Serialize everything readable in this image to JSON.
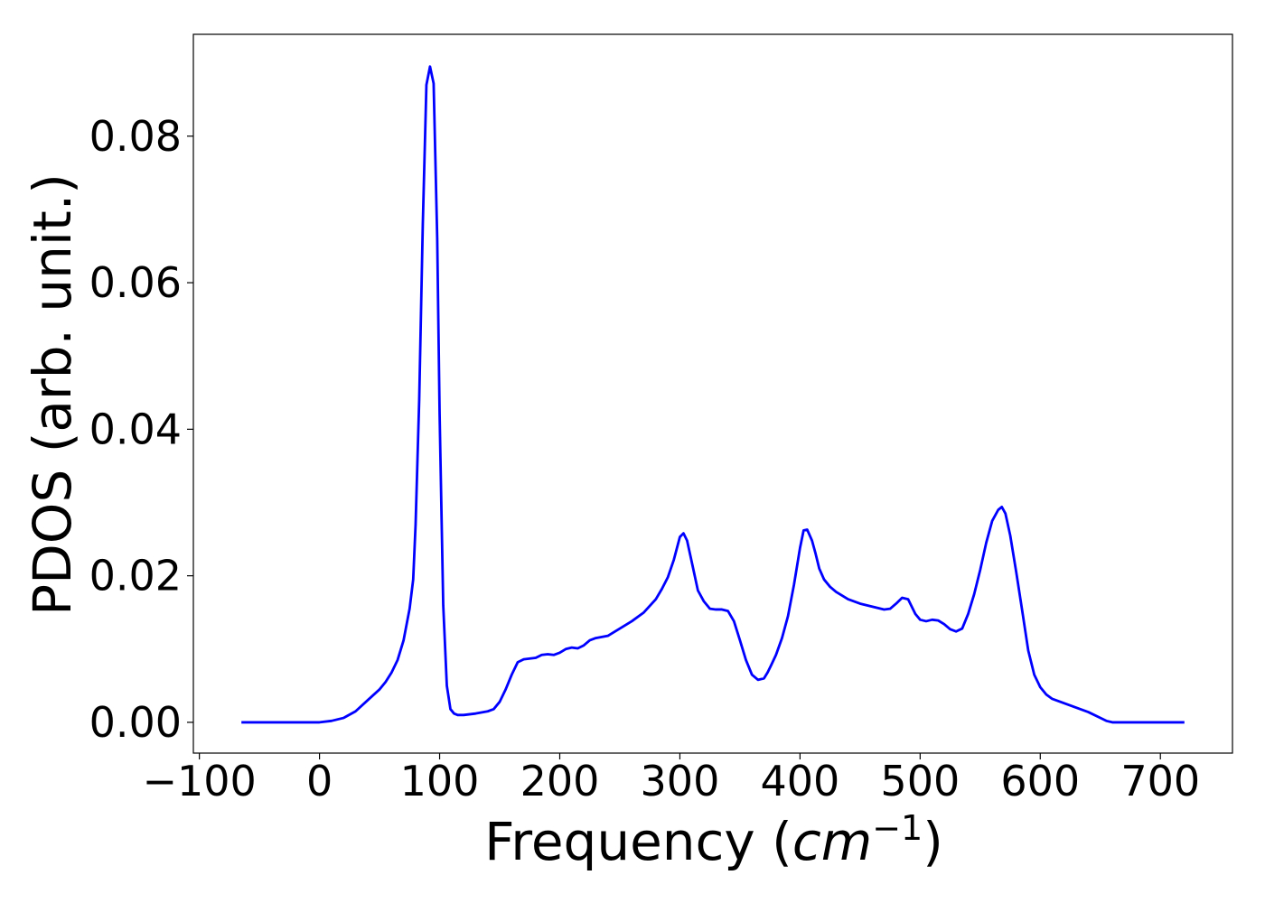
{
  "chart_data": {
    "type": "line",
    "title": "",
    "xlabel": "Frequency (",
    "xlabel_unit": "cm",
    "xlabel_exp": "−1",
    "xlabel_close": ")",
    "ylabel": "PDOS (arb. unit.)",
    "xlim": [
      -105,
      760
    ],
    "ylim": [
      -0.0042,
      0.0939
    ],
    "xticks": [
      -100,
      0,
      100,
      200,
      300,
      400,
      500,
      600,
      700
    ],
    "xtick_labels": [
      "−100",
      "0",
      "100",
      "200",
      "300",
      "400",
      "500",
      "600",
      "700"
    ],
    "yticks": [
      0.0,
      0.02,
      0.04,
      0.06,
      0.08
    ],
    "ytick_labels": [
      "0.00",
      "0.02",
      "0.04",
      "0.06",
      "0.08"
    ],
    "grid": false,
    "legend": "none",
    "series": [
      {
        "color": "#0000ff",
        "x": [
          -65,
          -40,
          -20,
          0,
          10,
          20,
          30,
          40,
          50,
          55,
          60,
          65,
          70,
          75,
          78,
          80,
          83,
          86,
          89,
          92,
          95,
          98,
          100,
          103,
          106,
          109,
          112,
          115,
          120,
          130,
          140,
          145,
          150,
          155,
          160,
          165,
          170,
          180,
          185,
          190,
          195,
          200,
          205,
          210,
          215,
          220,
          225,
          230,
          240,
          250,
          260,
          270,
          280,
          285,
          290,
          295,
          300,
          303,
          306,
          310,
          315,
          320,
          325,
          330,
          335,
          340,
          345,
          350,
          355,
          360,
          365,
          370,
          373,
          376,
          380,
          385,
          390,
          395,
          400,
          403,
          406,
          410,
          413,
          416,
          420,
          425,
          430,
          440,
          450,
          460,
          470,
          475,
          480,
          485,
          490,
          493,
          496,
          500,
          505,
          510,
          515,
          520,
          525,
          530,
          535,
          540,
          545,
          550,
          555,
          560,
          565,
          568,
          571,
          575,
          580,
          585,
          590,
          595,
          600,
          605,
          610,
          620,
          630,
          640,
          650,
          655,
          660,
          670,
          690,
          720
        ],
        "y": [
          0.0,
          0.0,
          0.0,
          0.0,
          0.0002,
          0.0006,
          0.0015,
          0.003,
          0.0045,
          0.0055,
          0.0068,
          0.0085,
          0.0112,
          0.0155,
          0.0195,
          0.027,
          0.044,
          0.068,
          0.087,
          0.0895,
          0.0872,
          0.066,
          0.042,
          0.016,
          0.005,
          0.0018,
          0.0012,
          0.001,
          0.001,
          0.0012,
          0.0015,
          0.0018,
          0.0028,
          0.0045,
          0.0065,
          0.0082,
          0.0086,
          0.0088,
          0.0092,
          0.0093,
          0.0092,
          0.0095,
          0.01,
          0.0102,
          0.0101,
          0.0105,
          0.0112,
          0.0115,
          0.0118,
          0.0128,
          0.0138,
          0.015,
          0.0168,
          0.0182,
          0.0198,
          0.0222,
          0.0253,
          0.0258,
          0.0248,
          0.0218,
          0.018,
          0.0165,
          0.0155,
          0.0154,
          0.0154,
          0.0152,
          0.0138,
          0.0112,
          0.0085,
          0.0065,
          0.0058,
          0.006,
          0.0068,
          0.0078,
          0.0092,
          0.0115,
          0.0145,
          0.0188,
          0.0238,
          0.0262,
          0.0263,
          0.0248,
          0.023,
          0.021,
          0.0195,
          0.0185,
          0.0178,
          0.0168,
          0.0162,
          0.0158,
          0.0154,
          0.0155,
          0.0162,
          0.017,
          0.0168,
          0.0158,
          0.0148,
          0.014,
          0.0138,
          0.014,
          0.0139,
          0.0134,
          0.0127,
          0.0124,
          0.0128,
          0.0148,
          0.0175,
          0.0208,
          0.0245,
          0.0275,
          0.029,
          0.0294,
          0.0285,
          0.0255,
          0.0205,
          0.0152,
          0.0098,
          0.0065,
          0.0048,
          0.0038,
          0.0032,
          0.0026,
          0.002,
          0.0014,
          0.0006,
          0.0002,
          0.0,
          0.0,
          0.0,
          0.0
        ]
      }
    ]
  }
}
